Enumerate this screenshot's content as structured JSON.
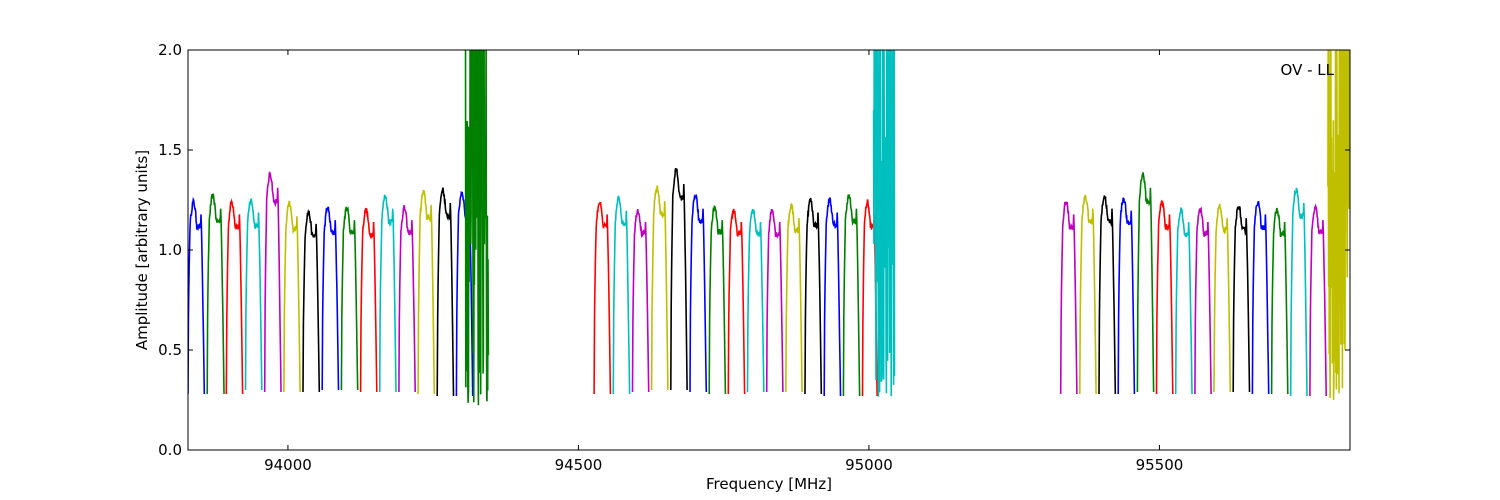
{
  "chart_data": {
    "type": "line",
    "annotation": "OV - LL",
    "xlabel": "Frequency [MHz]",
    "ylabel": "Amplitude [arbitrary units]",
    "xlim": [
      93828,
      95828
    ],
    "ylim": [
      0.0,
      2.0
    ],
    "xticks": [
      94000,
      94500,
      95000,
      95500
    ],
    "xtick_labels": [
      "94000",
      "94500",
      "95000",
      "95500"
    ],
    "yticks": [
      0.0,
      0.5,
      1.0,
      1.5,
      2.0
    ],
    "ytick_labels": [
      "0.0",
      "0.5",
      "1.0",
      "1.5",
      "2.0"
    ],
    "grid": false,
    "series_colors": [
      "#0000ff",
      "#008000",
      "#ff0000",
      "#00bfbf",
      "#bf00bf",
      "#bfbf00",
      "#000000"
    ],
    "channels": [
      {
        "start": 93828,
        "end": 93856,
        "peak": 1.24,
        "min": 0.28,
        "color": "#0000ff"
      },
      {
        "start": 93861,
        "end": 93890,
        "peak": 1.27,
        "min": 0.28,
        "color": "#008000"
      },
      {
        "start": 93894,
        "end": 93922,
        "peak": 1.24,
        "min": 0.28,
        "color": "#ff0000"
      },
      {
        "start": 93927,
        "end": 93955,
        "peak": 1.25,
        "min": 0.3,
        "color": "#00bfbf"
      },
      {
        "start": 93960,
        "end": 93988,
        "peak": 1.38,
        "min": 0.29,
        "color": "#bf00bf"
      },
      {
        "start": 93993,
        "end": 94021,
        "peak": 1.23,
        "min": 0.29,
        "color": "#bfbf00"
      },
      {
        "start": 94026,
        "end": 94054,
        "peak": 1.19,
        "min": 0.29,
        "color": "#000000"
      },
      {
        "start": 94059,
        "end": 94087,
        "peak": 1.21,
        "min": 0.3,
        "color": "#0000ff"
      },
      {
        "start": 94092,
        "end": 94120,
        "peak": 1.21,
        "min": 0.3,
        "color": "#008000"
      },
      {
        "start": 94125,
        "end": 94153,
        "peak": 1.2,
        "min": 0.29,
        "color": "#ff0000"
      },
      {
        "start": 94158,
        "end": 94186,
        "peak": 1.27,
        "min": 0.29,
        "color": "#00bfbf"
      },
      {
        "start": 94191,
        "end": 94219,
        "peak": 1.21,
        "min": 0.29,
        "color": "#bf00bf"
      },
      {
        "start": 94224,
        "end": 94252,
        "peak": 1.29,
        "min": 0.28,
        "color": "#bfbf00"
      },
      {
        "start": 94257,
        "end": 94285,
        "peak": 1.3,
        "min": 0.27,
        "color": "#000000"
      },
      {
        "start": 94290,
        "end": 94318,
        "peak": 1.29,
        "min": 0.27,
        "color": "#0000ff"
      },
      {
        "start": 94527,
        "end": 94555,
        "peak": 1.24,
        "min": 0.28,
        "color": "#ff0000"
      },
      {
        "start": 94560,
        "end": 94588,
        "peak": 1.26,
        "min": 0.28,
        "color": "#00bfbf"
      },
      {
        "start": 94593,
        "end": 94621,
        "peak": 1.2,
        "min": 0.29,
        "color": "#bf00bf"
      },
      {
        "start": 94626,
        "end": 94654,
        "peak": 1.31,
        "min": 0.3,
        "color": "#bfbf00"
      },
      {
        "start": 94659,
        "end": 94687,
        "peak": 1.4,
        "min": 0.3,
        "color": "#000000"
      },
      {
        "start": 94692,
        "end": 94720,
        "peak": 1.27,
        "min": 0.29,
        "color": "#0000ff"
      },
      {
        "start": 94725,
        "end": 94753,
        "peak": 1.21,
        "min": 0.28,
        "color": "#008000"
      },
      {
        "start": 94758,
        "end": 94786,
        "peak": 1.2,
        "min": 0.28,
        "color": "#ff0000"
      },
      {
        "start": 94791,
        "end": 94819,
        "peak": 1.2,
        "min": 0.29,
        "color": "#00bfbf"
      },
      {
        "start": 94824,
        "end": 94852,
        "peak": 1.2,
        "min": 0.29,
        "color": "#bf00bf"
      },
      {
        "start": 94857,
        "end": 94885,
        "peak": 1.22,
        "min": 0.29,
        "color": "#bfbf00"
      },
      {
        "start": 94890,
        "end": 94918,
        "peak": 1.25,
        "min": 0.28,
        "color": "#000000"
      },
      {
        "start": 94923,
        "end": 94951,
        "peak": 1.25,
        "min": 0.27,
        "color": "#0000ff"
      },
      {
        "start": 94956,
        "end": 94984,
        "peak": 1.27,
        "min": 0.27,
        "color": "#008000"
      },
      {
        "start": 94989,
        "end": 95014,
        "peak": 1.24,
        "min": 0.27,
        "color": "#ff0000"
      },
      {
        "start": 95330,
        "end": 95358,
        "peak": 1.24,
        "min": 0.28,
        "color": "#bf00bf"
      },
      {
        "start": 95363,
        "end": 95391,
        "peak": 1.27,
        "min": 0.28,
        "color": "#bfbf00"
      },
      {
        "start": 95396,
        "end": 95424,
        "peak": 1.27,
        "min": 0.28,
        "color": "#000000"
      },
      {
        "start": 95429,
        "end": 95457,
        "peak": 1.26,
        "min": 0.28,
        "color": "#0000ff"
      },
      {
        "start": 95462,
        "end": 95490,
        "peak": 1.38,
        "min": 0.29,
        "color": "#008000"
      },
      {
        "start": 95495,
        "end": 95523,
        "peak": 1.24,
        "min": 0.28,
        "color": "#ff0000"
      },
      {
        "start": 95528,
        "end": 95556,
        "peak": 1.2,
        "min": 0.28,
        "color": "#00bfbf"
      },
      {
        "start": 95561,
        "end": 95589,
        "peak": 1.2,
        "min": 0.28,
        "color": "#bf00bf"
      },
      {
        "start": 95594,
        "end": 95622,
        "peak": 1.22,
        "min": 0.29,
        "color": "#bfbf00"
      },
      {
        "start": 95627,
        "end": 95655,
        "peak": 1.22,
        "min": 0.29,
        "color": "#000000"
      },
      {
        "start": 95660,
        "end": 95688,
        "peak": 1.24,
        "min": 0.28,
        "color": "#0000ff"
      },
      {
        "start": 95693,
        "end": 95721,
        "peak": 1.2,
        "min": 0.28,
        "color": "#008000"
      },
      {
        "start": 95726,
        "end": 95754,
        "peak": 1.3,
        "min": 0.27,
        "color": "#00bfbf"
      },
      {
        "start": 95759,
        "end": 95787,
        "peak": 1.21,
        "min": 0.27,
        "color": "#bf00bf"
      }
    ],
    "noisy_segments": [
      {
        "start": 94305,
        "end": 94345,
        "color": "#008000",
        "ymin": 0.22,
        "ymax": 2.0
      },
      {
        "start": 95008,
        "end": 95044,
        "color": "#00bfbf",
        "ymin": 0.24,
        "ymax": 2.0
      },
      {
        "start": 95790,
        "end": 95828,
        "color": "#bfbf00",
        "ymin": 0.25,
        "ymax": 2.0
      }
    ],
    "gray_spikes": [
      {
        "x": 94328,
        "y": 2.0
      },
      {
        "x": 95040,
        "y": 2.0
      }
    ]
  }
}
